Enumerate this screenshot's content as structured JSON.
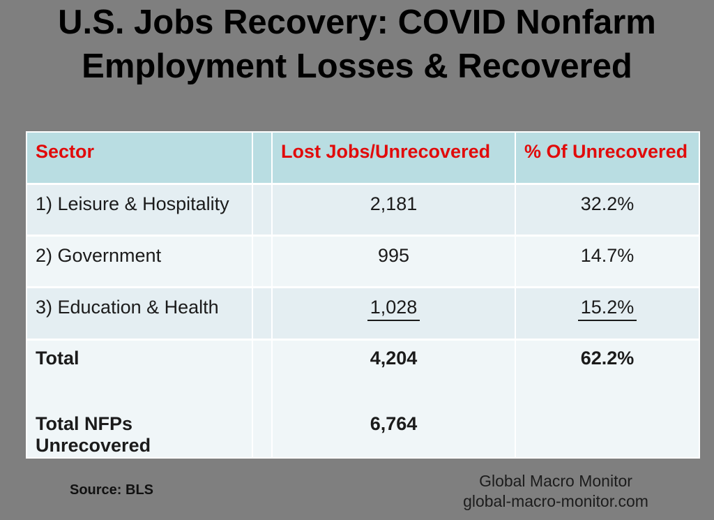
{
  "title": {
    "line1": "U.S. Jobs Recovery: COVID Nonfarm",
    "line2": "Employment Losses & Recovered"
  },
  "table": {
    "headers": {
      "sector": "Sector",
      "lost": "Lost Jobs/Unrecovered",
      "pct": "% Of Unrecovered"
    },
    "rows": [
      {
        "sector": "1) Leisure & Hospitality",
        "lost": "2,181",
        "pct": "32.2%"
      },
      {
        "sector": "2) Government",
        "lost": "995",
        "pct": "14.7%"
      },
      {
        "sector": "3) Education & Health",
        "lost": "1,028",
        "pct": "15.2%"
      },
      {
        "sector": "Total",
        "lost": "4,204",
        "pct": "62.2%"
      },
      {
        "sector": "Total NFPs Unrecovered",
        "lost": "6,764",
        "pct": ""
      }
    ]
  },
  "footer": {
    "source": "Source: BLS",
    "brand_line1": "Global Macro Monitor",
    "brand_line2": "global-macro-monitor.com"
  },
  "colors": {
    "background": "#7f7f7f",
    "table_header_bg": "#b9dde2",
    "row_shade_dark": "#e4eef2",
    "row_shade_light": "#f0f6f8",
    "header_text": "#e10b0b",
    "title_text": "#000000"
  },
  "chart_data": {
    "type": "table",
    "title": "U.S. Jobs Recovery: COVID Nonfarm Employment Losses & Recovered",
    "columns": [
      "Sector",
      "Lost Jobs/Unrecovered",
      "% Of Unrecovered"
    ],
    "rows": [
      {
        "sector": "1) Leisure & Hospitality",
        "lost_jobs_unrecovered": 2181,
        "pct_of_unrecovered": 32.2
      },
      {
        "sector": "2) Government",
        "lost_jobs_unrecovered": 995,
        "pct_of_unrecovered": 14.7
      },
      {
        "sector": "3) Education & Health",
        "lost_jobs_unrecovered": 1028,
        "pct_of_unrecovered": 15.2
      },
      {
        "sector": "Total",
        "lost_jobs_unrecovered": 4204,
        "pct_of_unrecovered": 62.2
      },
      {
        "sector": "Total NFPs Unrecovered",
        "lost_jobs_unrecovered": 6764,
        "pct_of_unrecovered": null
      }
    ],
    "source": "BLS",
    "notes": "Row 3 values shown underlined (subtotal line); Total and Total NFPs Unrecovered rows shown bold; Total NFPs Unrecovered has no percent value"
  }
}
